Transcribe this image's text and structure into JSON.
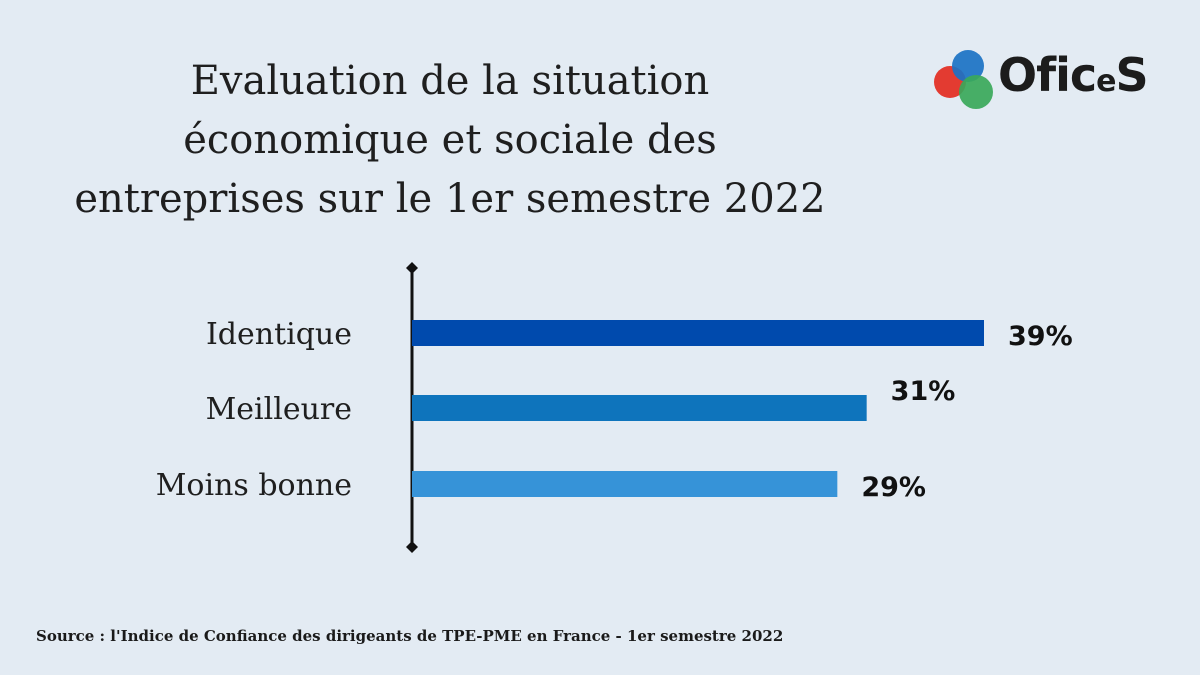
{
  "title_lines": [
    "Evaluation de la situation",
    "économique et sociale des",
    "entreprises sur le 1er semestre 2022"
  ],
  "logo": {
    "text_main": "Ofic",
    "text_small": "e",
    "text_end": "S",
    "colors": [
      "#e32b21",
      "#1b72c4",
      "#3aa85a"
    ]
  },
  "chart_data": {
    "type": "bar",
    "orientation": "horizontal",
    "categories": [
      "Identique",
      "Meilleure",
      "Moins bonne"
    ],
    "values": [
      39,
      31,
      29
    ],
    "value_labels": [
      "39%",
      "31%",
      "29%"
    ],
    "colors": [
      "#004aad",
      "#0e74bc",
      "#3693d8"
    ],
    "unit": "%",
    "xlim": [
      0,
      40
    ],
    "grid": false,
    "legend": "none"
  },
  "source": "Source : l'Indice de Confiance des dirigeants de TPE-PME en France - 1er semestre 2022"
}
